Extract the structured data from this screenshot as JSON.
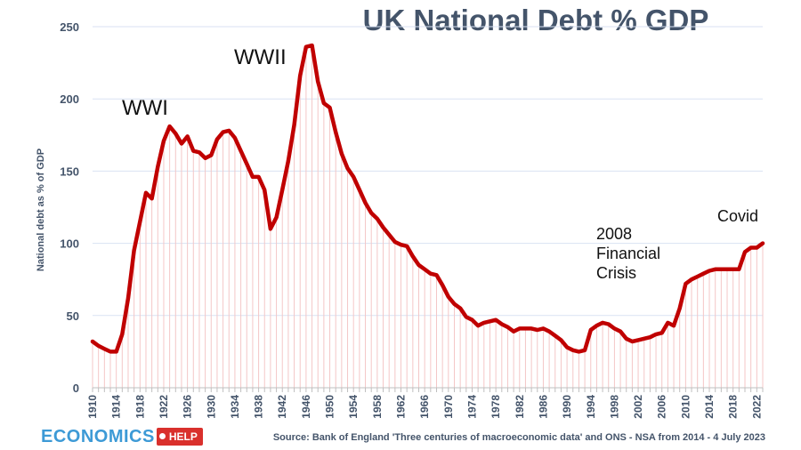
{
  "chart_data": {
    "type": "line",
    "title": "UK National Debt % GDP",
    "xlabel": "",
    "ylabel": "National debt as % of GDP",
    "xlim": [
      1910,
      2023
    ],
    "ylim": [
      0,
      250
    ],
    "yticks": [
      0,
      50,
      100,
      150,
      200,
      250
    ],
    "xtick_labels": [
      "1910",
      "1914",
      "1918",
      "1922",
      "1926",
      "1930",
      "1934",
      "1938",
      "1942",
      "1946",
      "1950",
      "1954",
      "1958",
      "1962",
      "1966",
      "1970",
      "1974",
      "1978",
      "1982",
      "1986",
      "1990",
      "1994",
      "1998",
      "2002",
      "2006",
      "2010",
      "2014",
      "2018",
      "2022"
    ],
    "grid": "horizontal",
    "series": [
      {
        "name": "National debt % GDP",
        "color": "#c00000",
        "x": [
          1910,
          1911,
          1912,
          1913,
          1914,
          1915,
          1916,
          1917,
          1918,
          1919,
          1920,
          1921,
          1922,
          1923,
          1924,
          1925,
          1926,
          1927,
          1928,
          1929,
          1930,
          1931,
          1932,
          1933,
          1934,
          1935,
          1936,
          1937,
          1938,
          1939,
          1940,
          1941,
          1942,
          1943,
          1944,
          1945,
          1946,
          1947,
          1948,
          1949,
          1950,
          1951,
          1952,
          1953,
          1954,
          1955,
          1956,
          1957,
          1958,
          1959,
          1960,
          1961,
          1962,
          1963,
          1964,
          1965,
          1966,
          1967,
          1968,
          1969,
          1970,
          1971,
          1972,
          1973,
          1974,
          1975,
          1976,
          1977,
          1978,
          1979,
          1980,
          1981,
          1982,
          1983,
          1984,
          1985,
          1986,
          1987,
          1988,
          1989,
          1990,
          1991,
          1992,
          1993,
          1994,
          1995,
          1996,
          1997,
          1998,
          1999,
          2000,
          2001,
          2002,
          2003,
          2004,
          2005,
          2006,
          2007,
          2008,
          2009,
          2010,
          2011,
          2012,
          2013,
          2014,
          2015,
          2016,
          2017,
          2018,
          2019,
          2020,
          2021,
          2022,
          2023
        ],
        "values": [
          32,
          29,
          27,
          25,
          25,
          37,
          62,
          95,
          115,
          135,
          131,
          153,
          171,
          181,
          176,
          169,
          174,
          164,
          163,
          159,
          161,
          172,
          177,
          178,
          173,
          164,
          155,
          146,
          146,
          137,
          110,
          118,
          137,
          157,
          182,
          216,
          236,
          237,
          212,
          197,
          194,
          177,
          162,
          152,
          146,
          137,
          128,
          121,
          117,
          111,
          106,
          101,
          99,
          98,
          91,
          85,
          82,
          79,
          78,
          71,
          63,
          58,
          55,
          49,
          47,
          43,
          45,
          46,
          47,
          44,
          42,
          39,
          41,
          41,
          41,
          40,
          41,
          39,
          36,
          33,
          28,
          26,
          25,
          26,
          40,
          43,
          45,
          44,
          41,
          39,
          34,
          32,
          33,
          34,
          35,
          37,
          38,
          45,
          43,
          55,
          72,
          75,
          77,
          79,
          81,
          82,
          82,
          82,
          82,
          82,
          94,
          97,
          97,
          100
        ]
      }
    ],
    "annotations": [
      {
        "text": "WWI",
        "x": 1923
      },
      {
        "text": "WWII",
        "x": 1943
      },
      {
        "text": "2008 Financial Crisis",
        "lines": [
          "2008",
          "Financial",
          "Crisis"
        ],
        "x": 2000
      },
      {
        "text": "Covid",
        "x": 2020
      }
    ]
  },
  "logo": {
    "word": "ECONOMICS",
    "tag": "HELP"
  },
  "source": "Source: Bank of England 'Three centuries of macroeconomic data' and ONS - NSA from 2014  - 4 July 2023",
  "colors": {
    "title": "#44546a",
    "line": "#c00000",
    "grid": "#d9e2f3",
    "bars": "#f4c7c7"
  }
}
